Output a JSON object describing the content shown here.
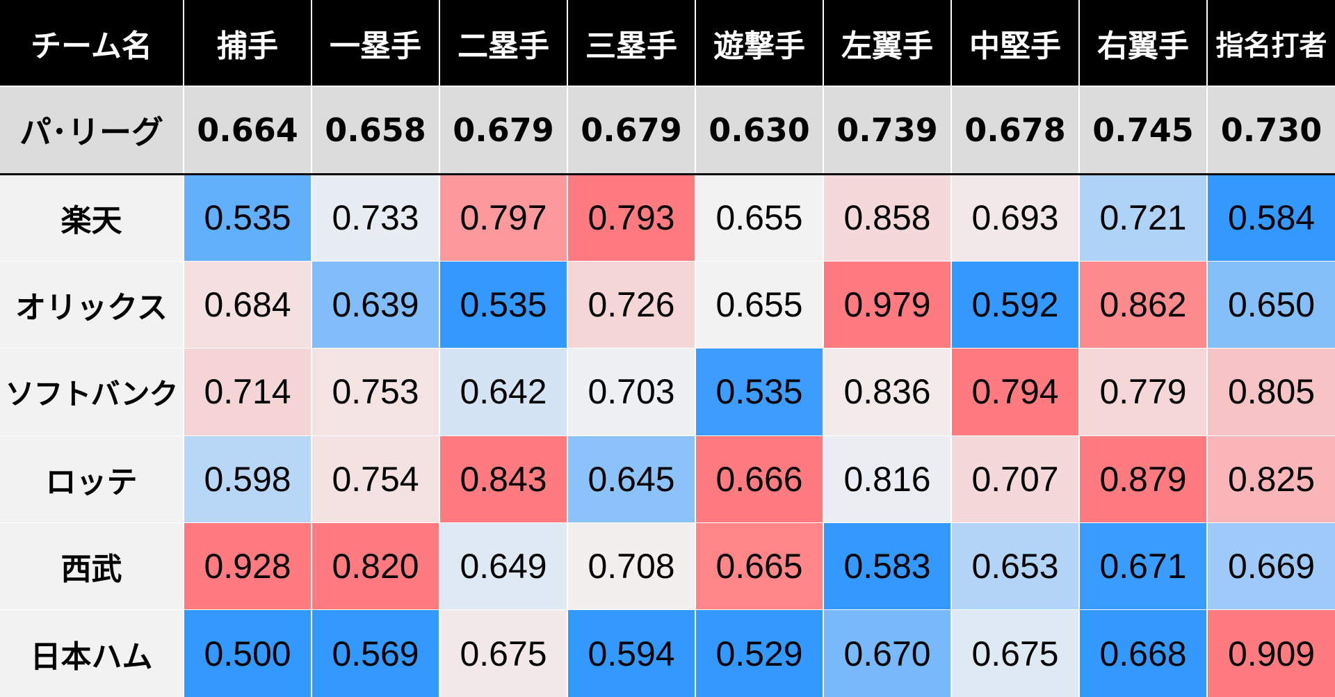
{
  "table": {
    "header": [
      "チーム名",
      "捕手",
      "一塁手",
      "二塁手",
      "三塁手",
      "遊撃手",
      "左翼手",
      "中堅手",
      "右翼手",
      "指名打者"
    ],
    "league": {
      "name": "パ･リーグ",
      "values": [
        "0.664",
        "0.658",
        "0.679",
        "0.679",
        "0.630",
        "0.739",
        "0.678",
        "0.745",
        "0.730"
      ]
    },
    "teams": [
      {
        "name": "楽天",
        "values": [
          "0.535",
          "0.733",
          "0.797",
          "0.793",
          "0.655",
          "0.858",
          "0.693",
          "0.721",
          "0.584"
        ]
      },
      {
        "name": "オリックス",
        "values": [
          "0.684",
          "0.639",
          "0.535",
          "0.726",
          "0.655",
          "0.979",
          "0.592",
          "0.862",
          "0.650"
        ]
      },
      {
        "name": "ソフトバンク",
        "values": [
          "0.714",
          "0.753",
          "0.642",
          "0.703",
          "0.535",
          "0.836",
          "0.794",
          "0.779",
          "0.805"
        ]
      },
      {
        "name": "ロッテ",
        "values": [
          "0.598",
          "0.754",
          "0.843",
          "0.645",
          "0.666",
          "0.816",
          "0.707",
          "0.879",
          "0.825"
        ]
      },
      {
        "name": "西武",
        "values": [
          "0.928",
          "0.820",
          "0.649",
          "0.708",
          "0.665",
          "0.583",
          "0.653",
          "0.671",
          "0.669"
        ]
      },
      {
        "name": "日本ハム",
        "values": [
          "0.500",
          "0.569",
          "0.675",
          "0.594",
          "0.529",
          "0.670",
          "0.675",
          "0.668",
          "0.909"
        ]
      }
    ]
  },
  "chart_data": {
    "type": "heatmap",
    "title": "",
    "rows": [
      "楽天",
      "オリックス",
      "ソフトバンク",
      "ロッテ",
      "西武",
      "日本ハム"
    ],
    "columns": [
      "捕手",
      "一塁手",
      "二塁手",
      "三塁手",
      "遊撃手",
      "左翼手",
      "中堅手",
      "右翼手",
      "指名打者"
    ],
    "reference_row": {
      "name": "パ･リーグ",
      "values": [
        0.664,
        0.658,
        0.679,
        0.679,
        0.63,
        0.739,
        0.678,
        0.745,
        0.73
      ]
    },
    "values": [
      [
        0.535,
        0.733,
        0.797,
        0.793,
        0.655,
        0.858,
        0.693,
        0.721,
        0.584
      ],
      [
        0.684,
        0.639,
        0.535,
        0.726,
        0.655,
        0.979,
        0.592,
        0.862,
        0.65
      ],
      [
        0.714,
        0.753,
        0.642,
        0.703,
        0.535,
        0.836,
        0.794,
        0.779,
        0.805
      ],
      [
        0.598,
        0.754,
        0.843,
        0.645,
        0.666,
        0.816,
        0.707,
        0.879,
        0.825
      ],
      [
        0.928,
        0.82,
        0.649,
        0.708,
        0.665,
        0.583,
        0.653,
        0.671,
        0.669
      ],
      [
        0.5,
        0.569,
        0.675,
        0.594,
        0.529,
        0.67,
        0.675,
        0.668,
        0.909
      ]
    ],
    "color_scale": {
      "scope": "per-column",
      "low": "#3399ff",
      "mid": "#f2f2f2",
      "high": "#ff7b7f"
    },
    "grid": false
  }
}
